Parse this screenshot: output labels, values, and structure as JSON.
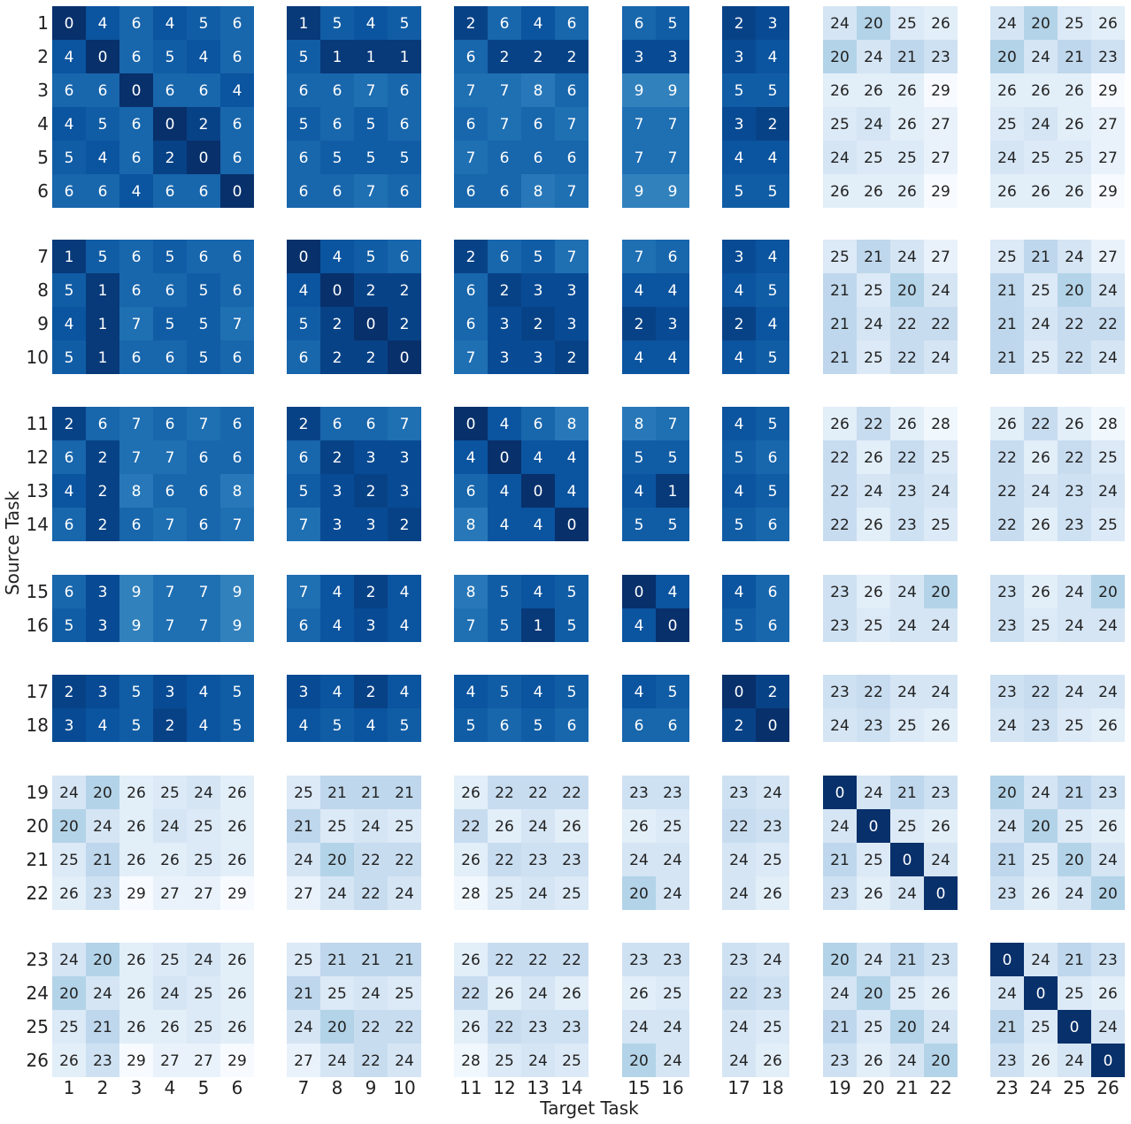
{
  "chart_data": {
    "type": "heatmap",
    "xlabel": "Target Task",
    "ylabel": "Source Task",
    "colormap": "Blues (reversed: low = dark blue, high = light)",
    "value_range": [
      0,
      29
    ],
    "grid": false,
    "colors": {
      "low": "#08306b",
      "mid": "#2171b5",
      "high": "#f7fbff",
      "text_dark": "#222222",
      "text_light": "#ffffff"
    },
    "row_groups": [
      [
        "1",
        "2",
        "3",
        "4",
        "5",
        "6"
      ],
      [
        "7",
        "8",
        "9",
        "10"
      ],
      [
        "11",
        "12",
        "13",
        "14"
      ],
      [
        "15",
        "16"
      ],
      [
        "17",
        "18"
      ],
      [
        "19",
        "20",
        "21",
        "22"
      ],
      [
        "23",
        "24",
        "25",
        "26"
      ]
    ],
    "col_groups": [
      [
        "1",
        "2",
        "3",
        "4",
        "5",
        "6"
      ],
      [
        "7",
        "8",
        "9",
        "10"
      ],
      [
        "11",
        "12",
        "13",
        "14"
      ],
      [
        "15",
        "16"
      ],
      [
        "17",
        "18"
      ],
      [
        "19",
        "20",
        "21",
        "22"
      ],
      [
        "23",
        "24",
        "25",
        "26"
      ]
    ],
    "values": [
      [
        0,
        4,
        6,
        4,
        5,
        6,
        1,
        5,
        4,
        5,
        2,
        6,
        4,
        6,
        6,
        5,
        2,
        3,
        24,
        20,
        25,
        26,
        24,
        20,
        25,
        26
      ],
      [
        4,
        0,
        6,
        5,
        4,
        6,
        5,
        1,
        1,
        1,
        6,
        2,
        2,
        2,
        3,
        3,
        3,
        4,
        20,
        24,
        21,
        23,
        20,
        24,
        21,
        23
      ],
      [
        6,
        6,
        0,
        6,
        6,
        4,
        6,
        6,
        7,
        6,
        7,
        7,
        8,
        6,
        9,
        9,
        5,
        5,
        26,
        26,
        26,
        29,
        26,
        26,
        26,
        29
      ],
      [
        4,
        5,
        6,
        0,
        2,
        6,
        5,
        6,
        5,
        6,
        6,
        7,
        6,
        7,
        7,
        7,
        3,
        2,
        25,
        24,
        26,
        27,
        25,
        24,
        26,
        27
      ],
      [
        5,
        4,
        6,
        2,
        0,
        6,
        6,
        5,
        5,
        5,
        7,
        6,
        6,
        6,
        7,
        7,
        4,
        4,
        24,
        25,
        25,
        27,
        24,
        25,
        25,
        27
      ],
      [
        6,
        6,
        4,
        6,
        6,
        0,
        6,
        6,
        7,
        6,
        6,
        6,
        8,
        7,
        9,
        9,
        5,
        5,
        26,
        26,
        26,
        29,
        26,
        26,
        26,
        29
      ],
      [
        1,
        5,
        6,
        5,
        6,
        6,
        0,
        4,
        5,
        6,
        2,
        6,
        5,
        7,
        7,
        6,
        3,
        4,
        25,
        21,
        24,
        27,
        25,
        21,
        24,
        27
      ],
      [
        5,
        1,
        6,
        6,
        5,
        6,
        4,
        0,
        2,
        2,
        6,
        2,
        3,
        3,
        4,
        4,
        4,
        5,
        21,
        25,
        20,
        24,
        21,
        25,
        20,
        24
      ],
      [
        4,
        1,
        7,
        5,
        5,
        7,
        5,
        2,
        0,
        2,
        6,
        3,
        2,
        3,
        2,
        3,
        2,
        4,
        21,
        24,
        22,
        22,
        21,
        24,
        22,
        22
      ],
      [
        5,
        1,
        6,
        6,
        5,
        6,
        6,
        2,
        2,
        0,
        7,
        3,
        3,
        2,
        4,
        4,
        4,
        5,
        21,
        25,
        22,
        24,
        21,
        25,
        22,
        24
      ],
      [
        2,
        6,
        7,
        6,
        7,
        6,
        2,
        6,
        6,
        7,
        0,
        4,
        6,
        8,
        8,
        7,
        4,
        5,
        26,
        22,
        26,
        28,
        26,
        22,
        26,
        28
      ],
      [
        6,
        2,
        7,
        7,
        6,
        6,
        6,
        2,
        3,
        3,
        4,
        0,
        4,
        4,
        5,
        5,
        5,
        6,
        22,
        26,
        22,
        25,
        22,
        26,
        22,
        25
      ],
      [
        4,
        2,
        8,
        6,
        6,
        8,
        5,
        3,
        2,
        3,
        6,
        4,
        0,
        4,
        4,
        1,
        4,
        5,
        22,
        24,
        23,
        24,
        22,
        24,
        23,
        24
      ],
      [
        6,
        2,
        6,
        7,
        6,
        7,
        7,
        3,
        3,
        2,
        8,
        4,
        4,
        0,
        5,
        5,
        5,
        6,
        22,
        26,
        23,
        25,
        22,
        26,
        23,
        25
      ],
      [
        6,
        3,
        9,
        7,
        7,
        9,
        7,
        4,
        2,
        4,
        8,
        5,
        4,
        5,
        0,
        4,
        4,
        6,
        23,
        26,
        24,
        20,
        23,
        26,
        24,
        20
      ],
      [
        5,
        3,
        9,
        7,
        7,
        9,
        6,
        4,
        3,
        4,
        7,
        5,
        1,
        5,
        4,
        0,
        5,
        6,
        23,
        25,
        24,
        24,
        23,
        25,
        24,
        24
      ],
      [
        2,
        3,
        5,
        3,
        4,
        5,
        3,
        4,
        2,
        4,
        4,
        5,
        4,
        5,
        4,
        5,
        0,
        2,
        23,
        22,
        24,
        24,
        23,
        22,
        24,
        24
      ],
      [
        3,
        4,
        5,
        2,
        4,
        5,
        4,
        5,
        4,
        5,
        5,
        6,
        5,
        6,
        6,
        6,
        2,
        0,
        24,
        23,
        25,
        26,
        24,
        23,
        25,
        26
      ],
      [
        24,
        20,
        26,
        25,
        24,
        26,
        25,
        21,
        21,
        21,
        26,
        22,
        22,
        22,
        23,
        23,
        23,
        24,
        0,
        24,
        21,
        23,
        20,
        24,
        21,
        23
      ],
      [
        20,
        24,
        26,
        24,
        25,
        26,
        21,
        25,
        24,
        25,
        22,
        26,
        24,
        26,
        26,
        25,
        22,
        23,
        24,
        0,
        25,
        26,
        24,
        20,
        25,
        26
      ],
      [
        25,
        21,
        26,
        26,
        25,
        26,
        24,
        20,
        22,
        22,
        26,
        22,
        23,
        23,
        24,
        24,
        24,
        25,
        21,
        25,
        0,
        24,
        21,
        25,
        20,
        24
      ],
      [
        26,
        23,
        29,
        27,
        27,
        29,
        27,
        24,
        22,
        24,
        28,
        25,
        24,
        25,
        20,
        24,
        24,
        26,
        23,
        26,
        24,
        0,
        23,
        26,
        24,
        20
      ],
      [
        24,
        20,
        26,
        25,
        24,
        26,
        25,
        21,
        21,
        21,
        26,
        22,
        22,
        22,
        23,
        23,
        23,
        24,
        20,
        24,
        21,
        23,
        0,
        24,
        21,
        23
      ],
      [
        20,
        24,
        26,
        24,
        25,
        26,
        21,
        25,
        24,
        25,
        22,
        26,
        24,
        26,
        26,
        25,
        22,
        23,
        24,
        20,
        25,
        26,
        24,
        0,
        25,
        26
      ],
      [
        25,
        21,
        26,
        26,
        25,
        26,
        24,
        20,
        22,
        22,
        26,
        22,
        23,
        23,
        24,
        24,
        24,
        25,
        21,
        25,
        20,
        24,
        21,
        25,
        0,
        24
      ],
      [
        26,
        23,
        29,
        27,
        27,
        29,
        27,
        24,
        22,
        24,
        28,
        25,
        24,
        25,
        20,
        24,
        24,
        26,
        23,
        26,
        24,
        20,
        23,
        26,
        24,
        0
      ]
    ]
  }
}
